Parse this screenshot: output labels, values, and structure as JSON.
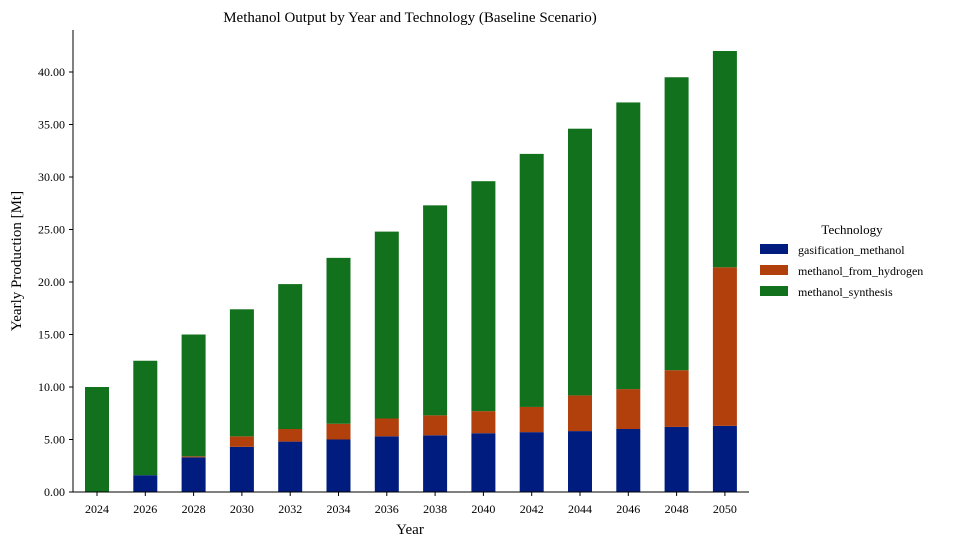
{
  "chart_data": {
    "type": "bar",
    "stacked": true,
    "title": "Methanol Output by Year and Technology (Baseline Scenario)",
    "xlabel": "Year",
    "ylabel": "Yearly Production [Mt]",
    "ylim": [
      0,
      44
    ],
    "yticks": [
      "0.00",
      "5.00",
      "10.00",
      "15.00",
      "20.00",
      "25.00",
      "30.00",
      "35.00",
      "40.00"
    ],
    "categories": [
      "2024",
      "2026",
      "2028",
      "2030",
      "2032",
      "2034",
      "2036",
      "2038",
      "2040",
      "2042",
      "2044",
      "2046",
      "2048",
      "2050"
    ],
    "series": [
      {
        "name": "gasification_methanol",
        "color": "#001c7f",
        "values": [
          0.0,
          1.6,
          3.3,
          4.3,
          4.8,
          5.0,
          5.3,
          5.4,
          5.6,
          5.7,
          5.8,
          6.0,
          6.2,
          6.3
        ]
      },
      {
        "name": "methanol_from_hydrogen",
        "color": "#b1400d",
        "values": [
          0.0,
          0.0,
          0.1,
          1.0,
          1.2,
          1.5,
          1.7,
          1.9,
          2.1,
          2.4,
          3.4,
          3.8,
          5.4,
          15.1
        ]
      },
      {
        "name": "methanol_synthesis",
        "color": "#12711c",
        "values": [
          10.0,
          10.9,
          11.6,
          12.1,
          13.8,
          15.8,
          17.8,
          20.0,
          21.9,
          24.1,
          25.4,
          27.3,
          27.9,
          20.6
        ]
      }
    ],
    "legend": {
      "title": "Technology",
      "placement": "right"
    }
  }
}
